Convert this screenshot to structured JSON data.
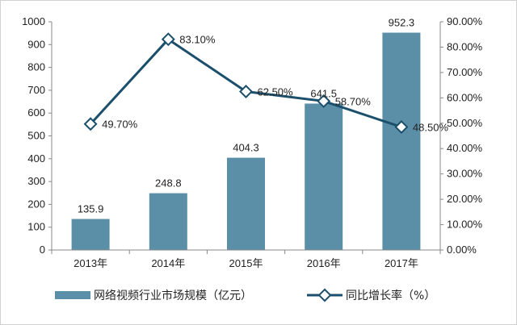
{
  "chart_data": {
    "type": "bar",
    "categories": [
      "2013年",
      "2014年",
      "2015年",
      "2016年",
      "2017年"
    ],
    "series": [
      {
        "name": "网络视频行业市场规模（亿元）",
        "type": "bar",
        "axis": "left",
        "values": [
          135.9,
          248.8,
          404.3,
          641.5,
          952.3
        ],
        "labels": [
          "135.9",
          "248.8",
          "404.3",
          "641.5",
          "952.3"
        ],
        "color": "#5b8fa8"
      },
      {
        "name": "同比增长率（%）",
        "type": "line",
        "axis": "right",
        "values": [
          49.7,
          83.1,
          62.5,
          58.7,
          48.5
        ],
        "labels": [
          "49.70%",
          "83.10%",
          "62.50%",
          "58.70%",
          "48.50%"
        ],
        "color": "#1b4f6b"
      }
    ],
    "y_left": {
      "range": [
        0,
        1000
      ],
      "ticks": [
        "0",
        "100",
        "200",
        "300",
        "400",
        "500",
        "600",
        "700",
        "800",
        "900",
        "1000"
      ]
    },
    "y_right": {
      "range": [
        0,
        90
      ],
      "ticks": [
        "0.00%",
        "10.00%",
        "20.00%",
        "30.00%",
        "40.00%",
        "50.00%",
        "60.00%",
        "70.00%",
        "80.00%",
        "90.00%"
      ]
    },
    "grid": false,
    "legend_position": "bottom"
  }
}
